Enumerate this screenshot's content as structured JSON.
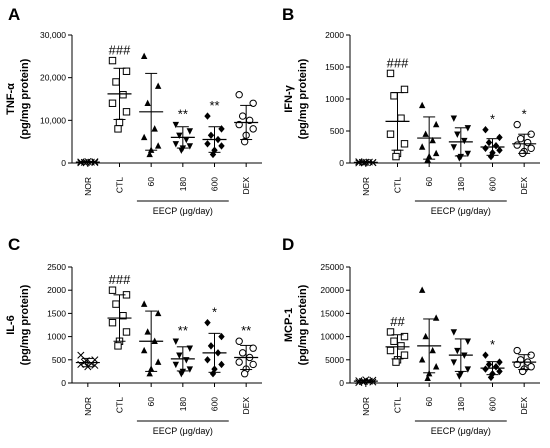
{
  "chart_data": [
    {
      "type": "scatter",
      "panel_label": "A",
      "ylabel_lines": [
        "TNF-α",
        "(pg/mg protein)"
      ],
      "ylim": [
        0,
        30000
      ],
      "yticks": [
        0,
        10000,
        20000,
        30000
      ],
      "ytick_labels": [
        "0",
        "10,000",
        "20,000",
        "30,000"
      ],
      "categories": [
        "NOR",
        "CTL",
        "60",
        "180",
        "600",
        "DEX"
      ],
      "group_label": "EECP (μg/day)",
      "groups": [
        {
          "marker": "x",
          "mean": 200,
          "sd": 150,
          "points": [
            50,
            100,
            150,
            200,
            250,
            300,
            350,
            120
          ]
        },
        {
          "marker": "square",
          "mean": 16200,
          "sd": 6000,
          "points": [
            24000,
            21500,
            19000,
            16000,
            14000,
            12000,
            9500,
            8000
          ]
        },
        {
          "marker": "triangle",
          "mean": 12000,
          "sd": 9000,
          "points": [
            25000,
            18000,
            14000,
            8000,
            6000,
            4000,
            3000,
            2000
          ]
        },
        {
          "marker": "triangle-down",
          "mean": 6000,
          "sd": 2500,
          "points": [
            9000,
            7500,
            6500,
            5500,
            4500,
            4000,
            3500,
            3000
          ]
        },
        {
          "marker": "diamond",
          "mean": 5500,
          "sd": 3000,
          "points": [
            11000,
            8000,
            6500,
            5500,
            4500,
            4000,
            3000,
            2000
          ]
        },
        {
          "marker": "circle",
          "mean": 9500,
          "sd": 4000,
          "points": [
            16000,
            14000,
            11000,
            10000,
            9000,
            8000,
            6500,
            5000
          ]
        }
      ],
      "significance": [
        "",
        "###",
        "",
        "**",
        "**",
        ""
      ]
    },
    {
      "type": "scatter",
      "panel_label": "B",
      "ylabel_lines": [
        "IFN-γ",
        "(pg/mg protein)"
      ],
      "ylim": [
        0,
        2000
      ],
      "yticks": [
        0,
        500,
        1000,
        1500,
        2000
      ],
      "ytick_labels": [
        "0",
        "500",
        "1000",
        "1500",
        "2000"
      ],
      "categories": [
        "NOR",
        "CTL",
        "60",
        "180",
        "600",
        "DEX"
      ],
      "group_label": "EECP (μg/day)",
      "groups": [
        {
          "marker": "x",
          "mean": 10,
          "sd": 10,
          "points": [
            0,
            5,
            10,
            15,
            20,
            8,
            12,
            5
          ]
        },
        {
          "marker": "square",
          "mean": 650,
          "sd": 450,
          "points": [
            1400,
            1150,
            1050,
            700,
            450,
            300,
            150,
            100
          ]
        },
        {
          "marker": "triangle",
          "mean": 390,
          "sd": 330,
          "points": [
            900,
            600,
            450,
            350,
            250,
            150,
            100,
            50
          ]
        },
        {
          "marker": "triangle-down",
          "mean": 330,
          "sd": 220,
          "points": [
            700,
            550,
            450,
            350,
            250,
            150,
            100,
            80
          ]
        },
        {
          "marker": "diamond",
          "mean": 250,
          "sd": 130,
          "points": [
            520,
            400,
            320,
            270,
            230,
            200,
            160,
            100
          ]
        },
        {
          "marker": "circle",
          "mean": 300,
          "sd": 150,
          "points": [
            600,
            450,
            380,
            320,
            280,
            230,
            180,
            150
          ]
        }
      ],
      "significance": [
        "",
        "###",
        "",
        "",
        "*",
        "*"
      ]
    },
    {
      "type": "scatter",
      "panel_label": "C",
      "ylabel_lines": [
        "IL-6",
        "(pg/mg protein)"
      ],
      "ylim": [
        0,
        2500
      ],
      "yticks": [
        0,
        500,
        1000,
        1500,
        2000,
        2500
      ],
      "ytick_labels": [
        "0",
        "500",
        "1000",
        "1500",
        "2000",
        "2500"
      ],
      "categories": [
        "NOR",
        "CTL",
        "60",
        "180",
        "600",
        "DEX"
      ],
      "group_label": "EECP (μg/day)",
      "groups": [
        {
          "marker": "x",
          "mean": 440,
          "sd": 90,
          "points": [
            600,
            500,
            450,
            420,
            400,
            380,
            350,
            480
          ]
        },
        {
          "marker": "square",
          "mean": 1400,
          "sd": 500,
          "points": [
            2000,
            1900,
            1700,
            1450,
            1300,
            1100,
            900,
            800
          ]
        },
        {
          "marker": "triangle",
          "mean": 900,
          "sd": 650,
          "points": [
            1700,
            1500,
            1100,
            900,
            700,
            450,
            300,
            200
          ]
        },
        {
          "marker": "triangle-down",
          "mean": 520,
          "sd": 260,
          "points": [
            900,
            750,
            600,
            500,
            400,
            300,
            250,
            200
          ]
        },
        {
          "marker": "diamond",
          "mean": 650,
          "sd": 420,
          "points": [
            1300,
            1000,
            800,
            650,
            500,
            400,
            300,
            200
          ]
        },
        {
          "marker": "circle",
          "mean": 550,
          "sd": 260,
          "points": [
            900,
            750,
            650,
            550,
            450,
            400,
            300,
            200
          ]
        }
      ],
      "significance": [
        "",
        "###",
        "",
        "**",
        "*",
        "**"
      ]
    },
    {
      "type": "scatter",
      "panel_label": "D",
      "ylabel_lines": [
        "MCP-1",
        "(pg/mg protein)"
      ],
      "ylim": [
        0,
        25000
      ],
      "yticks": [
        0,
        5000,
        10000,
        15000,
        20000,
        25000
      ],
      "ytick_labels": [
        "0",
        "5000",
        "10000",
        "15000",
        "20000",
        "25000"
      ],
      "categories": [
        "NOR",
        "CTL",
        "60",
        "180",
        "600",
        "DEX"
      ],
      "group_label": "EECP (μg/day)",
      "groups": [
        {
          "marker": "x",
          "mean": 400,
          "sd": 250,
          "points": [
            100,
            200,
            300,
            400,
            500,
            600,
            700,
            300
          ]
        },
        {
          "marker": "square",
          "mean": 7800,
          "sd": 2600,
          "points": [
            11000,
            10000,
            9000,
            8000,
            7000,
            6000,
            5000,
            4500
          ]
        },
        {
          "marker": "triangle",
          "mean": 8000,
          "sd": 5800,
          "points": [
            20000,
            14000,
            10000,
            7000,
            5000,
            3500,
            2000,
            1000
          ]
        },
        {
          "marker": "triangle-down",
          "mean": 6000,
          "sd": 3500,
          "points": [
            11000,
            9000,
            7000,
            6000,
            4500,
            3000,
            2000,
            1500
          ]
        },
        {
          "marker": "diamond",
          "mean": 3200,
          "sd": 1400,
          "points": [
            6000,
            4500,
            4000,
            3500,
            3000,
            2500,
            2000,
            1200
          ]
        },
        {
          "marker": "circle",
          "mean": 4500,
          "sd": 1600,
          "points": [
            7000,
            6000,
            5000,
            4500,
            4000,
            3500,
            3000,
            2500
          ]
        }
      ],
      "significance": [
        "",
        "##",
        "",
        "",
        "*",
        ""
      ]
    }
  ]
}
